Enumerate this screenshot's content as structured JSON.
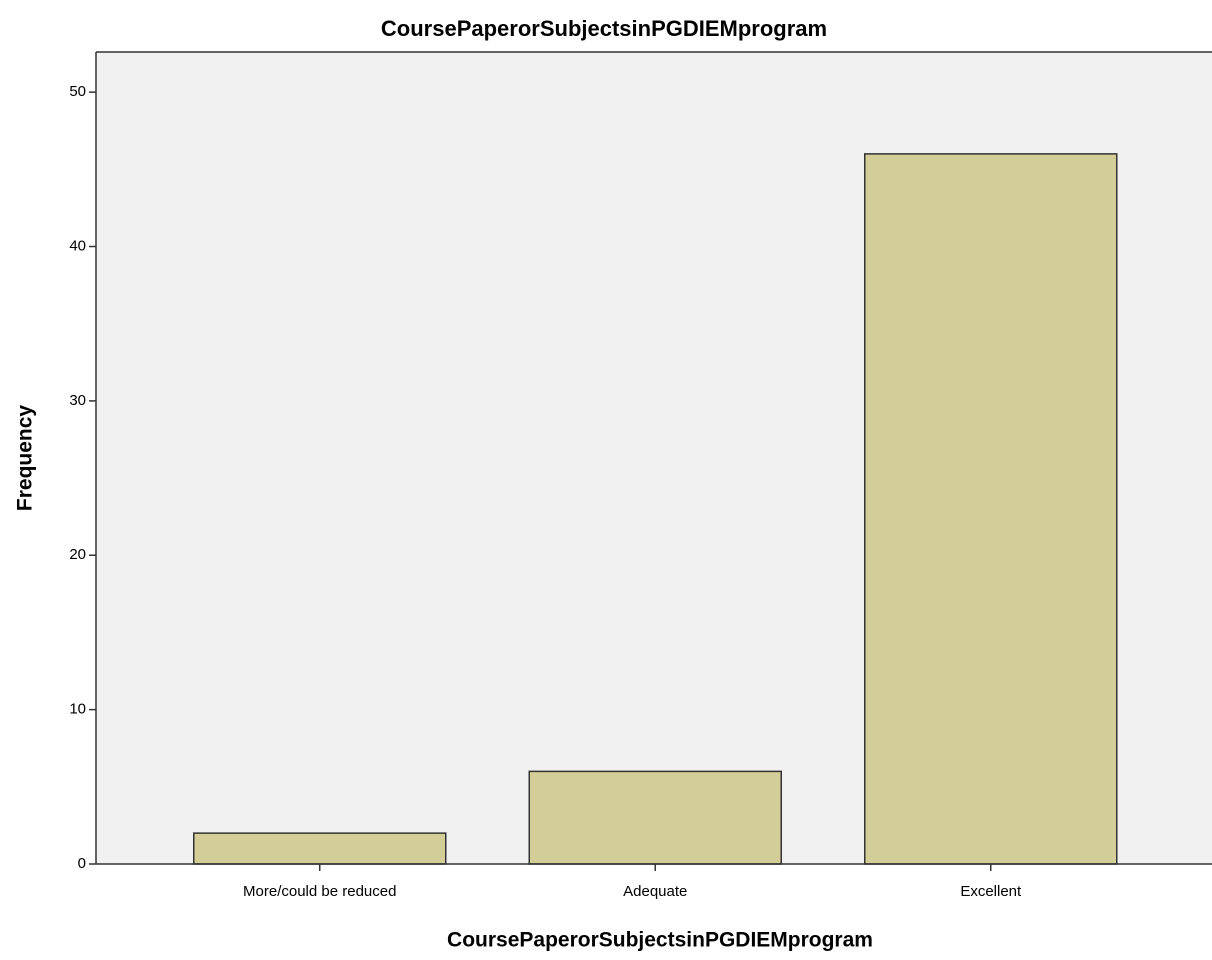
{
  "chart_data": {
    "type": "bar",
    "title": "CoursePaperorSubjectsinPGDIEMprogram",
    "x_label": "CoursePaperorSubjectsinPGDIEMprogram",
    "y_label": "Frequency",
    "categories": [
      "More/could be reduced",
      "Adequate",
      "Excellent"
    ],
    "values": [
      2,
      6,
      46
    ],
    "color": "#d3ce97",
    "ylim": [
      0,
      52.6
    ],
    "yticks": [
      0,
      10,
      20,
      30,
      40,
      50
    ],
    "grid": false
  }
}
